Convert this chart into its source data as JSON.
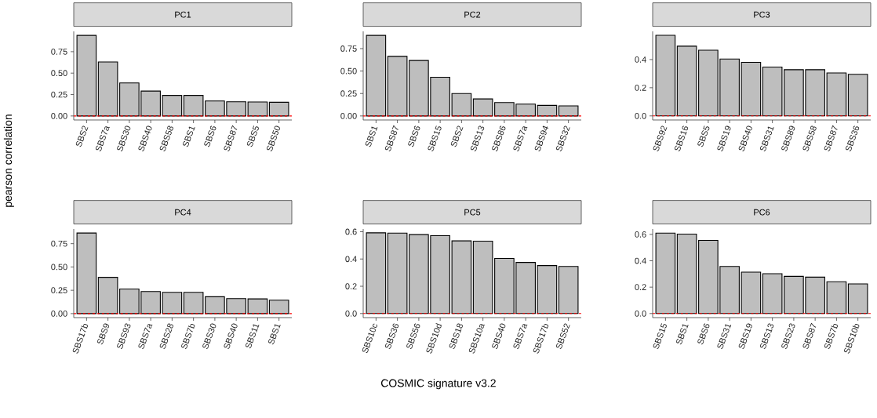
{
  "chart_data": [
    {
      "type": "bar",
      "title": "PC1",
      "ylabel": "pearson correlation",
      "color": "#bebebe",
      "categories": [
        "SBS2",
        "SBS7a",
        "SBS30",
        "SBS40",
        "SBS58",
        "SBS1",
        "SBS6",
        "SBS87",
        "SBS5",
        "SBS50"
      ],
      "values": [
        0.94,
        0.63,
        0.386,
        0.29,
        0.24,
        0.24,
        0.175,
        0.166,
        0.163,
        0.16
      ],
      "ylim": [
        -0.047,
        0.987
      ],
      "yticks": [
        {
          "value": 0,
          "label": "0.00"
        },
        {
          "value": 0.25,
          "label": "0.25"
        },
        {
          "value": 0.5,
          "label": "0.50"
        },
        {
          "value": 0.75,
          "label": "0.75"
        }
      ],
      "ref_lines": [
        {
          "axis": "y",
          "value": 0,
          "color": "#ff0000",
          "line_style": "dashed"
        }
      ]
    },
    {
      "type": "bar",
      "title": "PC2",
      "color": "#bebebe",
      "categories": [
        "SBS1",
        "SBS87",
        "SBS6",
        "SBS15",
        "SBS2",
        "SBS13",
        "SBS86",
        "SBS7a",
        "SBS94",
        "SBS32"
      ],
      "values": [
        0.897,
        0.664,
        0.618,
        0.431,
        0.25,
        0.19,
        0.149,
        0.132,
        0.118,
        0.112
      ],
      "ylim": [
        -0.045,
        0.942
      ],
      "yticks": [
        {
          "value": 0,
          "label": "0.00"
        },
        {
          "value": 0.25,
          "label": "0.25"
        },
        {
          "value": 0.5,
          "label": "0.50"
        },
        {
          "value": 0.75,
          "label": "0.75"
        }
      ],
      "ref_lines": [
        {
          "axis": "y",
          "value": 0,
          "color": "#ff0000",
          "line_style": "dashed"
        }
      ]
    },
    {
      "type": "bar",
      "title": "PC3",
      "color": "#bebebe",
      "categories": [
        "SBS92",
        "SBS16",
        "SBS5",
        "SBS19",
        "SBS40",
        "SBS31",
        "SBS89",
        "SBS58",
        "SBS87",
        "SBS36"
      ],
      "values": [
        0.572,
        0.495,
        0.466,
        0.404,
        0.38,
        0.347,
        0.328,
        0.328,
        0.305,
        0.295
      ],
      "ylim": [
        -0.029,
        0.6
      ],
      "yticks": [
        {
          "value": 0,
          "label": "0.0"
        },
        {
          "value": 0.2,
          "label": "0.2"
        },
        {
          "value": 0.4,
          "label": "0.4"
        }
      ],
      "ref_lines": [
        {
          "axis": "y",
          "value": 0,
          "color": "#ff0000",
          "line_style": "dashed"
        }
      ]
    },
    {
      "type": "bar",
      "title": "PC4",
      "color": "#bebebe",
      "categories": [
        "SBS17b",
        "SBS9",
        "SBS93",
        "SBS7a",
        "SBS28",
        "SBS7b",
        "SBS30",
        "SBS40",
        "SBS11",
        "SBS1"
      ],
      "values": [
        0.864,
        0.389,
        0.264,
        0.236,
        0.228,
        0.228,
        0.181,
        0.161,
        0.158,
        0.144
      ],
      "ylim": [
        -0.043,
        0.907
      ],
      "yticks": [
        {
          "value": 0,
          "label": "0.00"
        },
        {
          "value": 0.25,
          "label": "0.25"
        },
        {
          "value": 0.5,
          "label": "0.50"
        },
        {
          "value": 0.75,
          "label": "0.75"
        }
      ],
      "ref_lines": [
        {
          "axis": "y",
          "value": 0,
          "color": "#ff0000",
          "line_style": "dashed"
        }
      ]
    },
    {
      "type": "bar",
      "title": "PC5",
      "xlabel": "COSMIC signature v3.2",
      "color": "#bebebe",
      "categories": [
        "SBS10c",
        "SBS36",
        "SBS56",
        "SBS10d",
        "SBS18",
        "SBS10a",
        "SBS40",
        "SBS7a",
        "SBS17b",
        "SBS52"
      ],
      "values": [
        0.592,
        0.59,
        0.579,
        0.571,
        0.533,
        0.531,
        0.404,
        0.375,
        0.352,
        0.345
      ],
      "ylim": [
        -0.03,
        0.62
      ],
      "yticks": [
        {
          "value": 0,
          "label": "0.0"
        },
        {
          "value": 0.2,
          "label": "0.2"
        },
        {
          "value": 0.4,
          "label": "0.4"
        },
        {
          "value": 0.6,
          "label": "0.6"
        }
      ],
      "ref_lines": [
        {
          "axis": "y",
          "value": 0,
          "color": "#ff0000",
          "line_style": "dashed"
        }
      ]
    },
    {
      "type": "bar",
      "title": "PC6",
      "color": "#bebebe",
      "categories": [
        "SBS15",
        "SBS1",
        "SBS6",
        "SBS31",
        "SBS19",
        "SBS13",
        "SBS23",
        "SBS87",
        "SBS7b",
        "SBS10b"
      ],
      "values": [
        0.61,
        0.602,
        0.555,
        0.357,
        0.314,
        0.302,
        0.282,
        0.276,
        0.241,
        0.225
      ],
      "ylim": [
        -0.031,
        0.641
      ],
      "yticks": [
        {
          "value": 0,
          "label": "0.0"
        },
        {
          "value": 0.2,
          "label": "0.2"
        },
        {
          "value": 0.4,
          "label": "0.4"
        },
        {
          "value": 0.6,
          "label": "0.6"
        }
      ],
      "ref_lines": [
        {
          "axis": "y",
          "value": 0,
          "color": "#ff0000",
          "line_style": "dashed"
        }
      ]
    }
  ]
}
